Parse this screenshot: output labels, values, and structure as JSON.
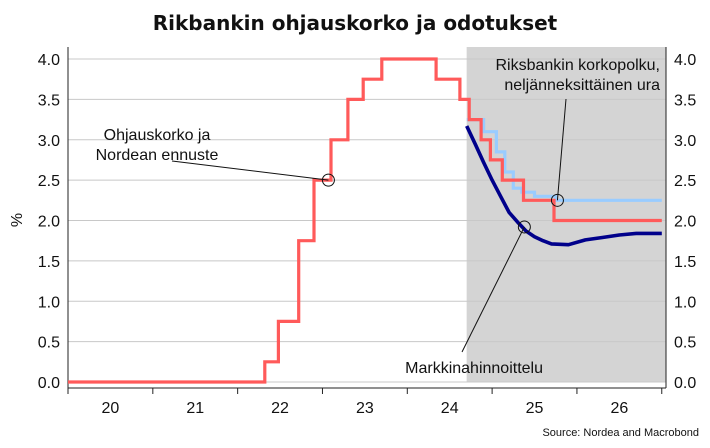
{
  "chart_data": {
    "type": "line",
    "title": "Rikbankin ohjauskorko ja odotukset",
    "ylabel": "%",
    "ylim": [
      0,
      4.0
    ],
    "xlim": [
      2019.5,
      2026.55
    ],
    "yticks": [
      "0.0",
      "0.5",
      "1.0",
      "1.5",
      "2.0",
      "2.5",
      "3.0",
      "3.5",
      "4.0"
    ],
    "xticks": [
      {
        "x": 2020.0,
        "label": "20"
      },
      {
        "x": 2021.0,
        "label": "21"
      },
      {
        "x": 2022.0,
        "label": "22"
      },
      {
        "x": 2023.0,
        "label": "23"
      },
      {
        "x": 2024.0,
        "label": "24"
      },
      {
        "x": 2025.0,
        "label": "25"
      },
      {
        "x": 2026.0,
        "label": "26"
      }
    ],
    "forecast_shade_start": 2024.2,
    "series": [
      {
        "name": "Riksbankin korkopolku, neljänneksittäinen ura",
        "color": "#99ccff",
        "step": true,
        "points": [
          [
            2024.2,
            3.25
          ],
          [
            2024.4,
            3.1
          ],
          [
            2024.55,
            2.85
          ],
          [
            2024.65,
            2.6
          ],
          [
            2024.75,
            2.4
          ],
          [
            2024.85,
            2.35
          ],
          [
            2025.0,
            2.3
          ],
          [
            2025.25,
            2.25
          ],
          [
            2026.5,
            2.25
          ]
        ]
      },
      {
        "name": "Ohjauskorko ja Nordean ennuste",
        "color": "#ff5a5a",
        "step": true,
        "points": [
          [
            2019.5,
            0.0
          ],
          [
            2021.82,
            0.0
          ],
          [
            2021.82,
            0.25
          ],
          [
            2021.98,
            0.25
          ],
          [
            2021.98,
            0.75
          ],
          [
            2022.22,
            0.75
          ],
          [
            2022.22,
            1.75
          ],
          [
            2022.4,
            1.75
          ],
          [
            2022.4,
            2.5
          ],
          [
            2022.6,
            2.5
          ],
          [
            2022.6,
            3.0
          ],
          [
            2022.8,
            3.0
          ],
          [
            2022.8,
            3.5
          ],
          [
            2022.98,
            3.5
          ],
          [
            2022.98,
            3.75
          ],
          [
            2023.2,
            3.75
          ],
          [
            2023.2,
            4.0
          ],
          [
            2023.84,
            4.0
          ],
          [
            2023.84,
            3.75
          ],
          [
            2024.12,
            3.75
          ],
          [
            2024.12,
            3.5
          ],
          [
            2024.23,
            3.5
          ],
          [
            2024.23,
            3.25
          ],
          [
            2024.37,
            3.25
          ],
          [
            2024.37,
            3.0
          ],
          [
            2024.48,
            3.0
          ],
          [
            2024.48,
            2.75
          ],
          [
            2024.62,
            2.75
          ],
          [
            2024.62,
            2.5
          ],
          [
            2024.87,
            2.5
          ],
          [
            2024.87,
            2.25
          ],
          [
            2025.23,
            2.25
          ],
          [
            2025.23,
            2.0
          ],
          [
            2026.5,
            2.0
          ]
        ]
      },
      {
        "name": "Markkinahinnoittelu",
        "color": "#00008b",
        "step": false,
        "points": [
          [
            2024.2,
            3.17
          ],
          [
            2024.3,
            2.95
          ],
          [
            2024.4,
            2.72
          ],
          [
            2024.5,
            2.5
          ],
          [
            2024.6,
            2.3
          ],
          [
            2024.7,
            2.1
          ],
          [
            2024.8,
            1.98
          ],
          [
            2024.9,
            1.87
          ],
          [
            2025.0,
            1.8
          ],
          [
            2025.1,
            1.75
          ],
          [
            2025.2,
            1.71
          ],
          [
            2025.4,
            1.7
          ],
          [
            2025.6,
            1.76
          ],
          [
            2025.8,
            1.79
          ],
          [
            2026.0,
            1.82
          ],
          [
            2026.2,
            1.84
          ],
          [
            2026.5,
            1.84
          ]
        ]
      }
    ],
    "annotations": [
      {
        "lines": [
          "Ohjauskorko ja",
          "Nordean ennuste"
        ],
        "target": [
          2022.57,
          2.5
        ],
        "anchor": "middle"
      },
      {
        "lines": [
          "Riksbankin korkopolku,",
          "neljänneksittäinen ura"
        ],
        "target": [
          2025.27,
          2.25
        ],
        "anchor": "end"
      },
      {
        "lines": [
          "Markkinahinnoittelu"
        ],
        "target": [
          2024.88,
          1.92
        ],
        "anchor": "end"
      }
    ],
    "source": "Source: Nordea and Macrobond"
  }
}
